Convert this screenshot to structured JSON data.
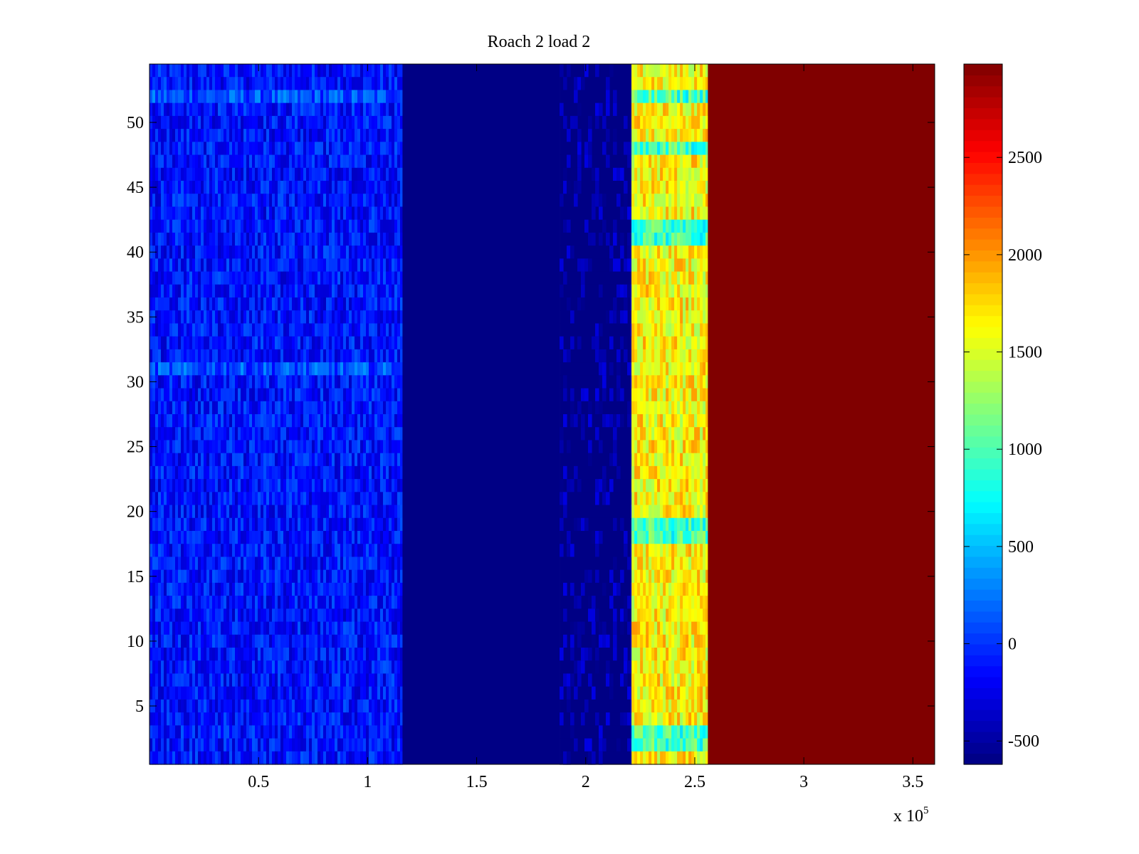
{
  "chart_data": {
    "type": "heatmap",
    "title": "Roach 2 load 2",
    "xlabel": "",
    "ylabel": "",
    "x_multiplier_label": "x 10",
    "x_multiplier_exponent": "5",
    "xlim": [
      0,
      3.6
    ],
    "ylim": [
      0.5,
      54.5
    ],
    "x_ticks": [
      0.5,
      1,
      1.5,
      2,
      2.5,
      3,
      3.5
    ],
    "x_tick_labels": [
      "0.5",
      "1",
      "1.5",
      "2",
      "2.5",
      "3",
      "3.5"
    ],
    "y_ticks": [
      5,
      10,
      15,
      20,
      25,
      30,
      35,
      40,
      45,
      50
    ],
    "y_tick_labels": [
      "5",
      "10",
      "15",
      "20",
      "25",
      "30",
      "35",
      "40",
      "45",
      "50"
    ],
    "rows": 54,
    "colormap": "jet",
    "color_limits": [
      -620,
      2980
    ],
    "colorbar_ticks": [
      -500,
      0,
      500,
      1000,
      1500,
      2000,
      2500
    ],
    "colorbar_tick_labels": [
      "-500",
      "0",
      "500",
      "1000",
      "1500",
      "2000",
      "2500"
    ],
    "regions": [
      {
        "name": "noisy-low",
        "x_range": [
          0,
          1.16
        ],
        "mean_value": -120,
        "variation": 260
      },
      {
        "name": "floor",
        "x_range": [
          1.16,
          1.88
        ],
        "mean_value": -600,
        "variation": 0
      },
      {
        "name": "floor-speckled",
        "x_range": [
          1.88,
          2.21
        ],
        "mean_value": -560,
        "variation": 100
      },
      {
        "name": "mid-band",
        "x_range": [
          2.21,
          2.56
        ],
        "mean_value": 1650,
        "variation": 350
      },
      {
        "name": "saturated",
        "x_range": [
          2.56,
          3.6
        ],
        "mean_value": 2980,
        "variation": 0
      }
    ],
    "highlight_rows": {
      "low_region_bright": [
        31,
        52
      ],
      "mid_band_teal": [
        2,
        3,
        18,
        19,
        41,
        42,
        48,
        52
      ]
    },
    "grid": false,
    "legend": "colorbar-right"
  }
}
